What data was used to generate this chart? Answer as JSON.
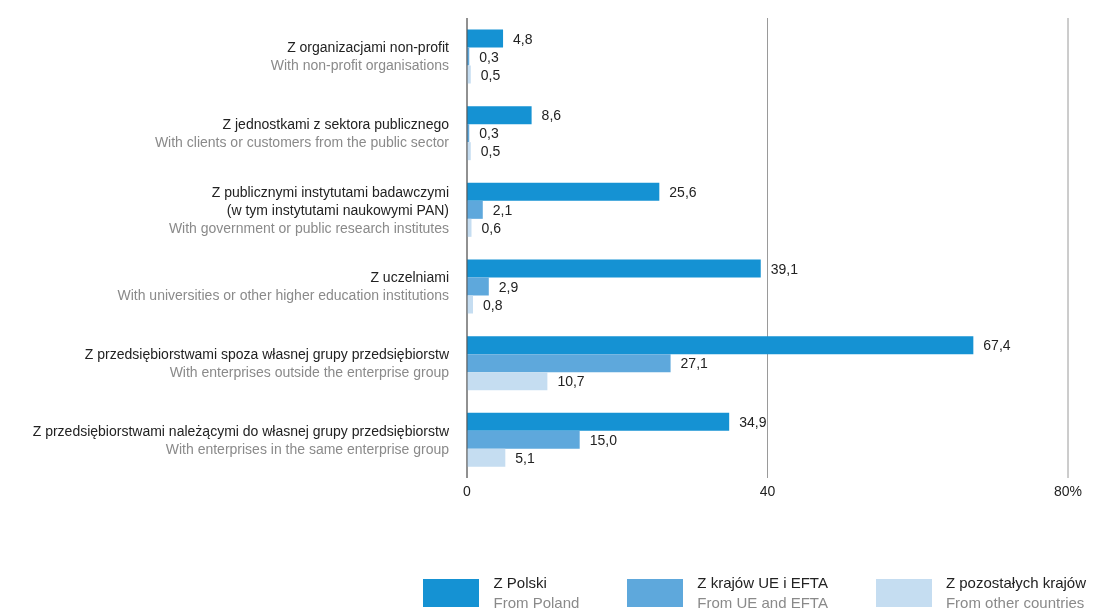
{
  "chart_data": {
    "type": "bar",
    "orientation": "horizontal",
    "categories": [
      "Z organizacjami non-profit\nWith non-profit organisations",
      "Z jednostkami z sektora publicznego\nWith clients or customers from the public sector",
      "Z publicznymi instytutami badawczymi\n(w tym instytutami naukowymi PAN)\nWith government or public research institutes",
      "Z uczelniami\nWith universities or other higher education institutions",
      "Z przedsiębiorstwami spoza własnej grupy przedsiębiorstw\nWith enterprises outside the enterprise group",
      "Z przedsiębiorstwami należącymi do własnej grupy przedsiębiorstw\nWith enterprises in the same enterprise group"
    ],
    "series": [
      {
        "name": "Z Polski\nFrom Poland",
        "color": "#1592d3",
        "values": [
          4.8,
          8.6,
          25.6,
          39.1,
          67.4,
          34.9
        ],
        "value_labels": [
          "4,8",
          "8,6",
          "25,6",
          "39,1",
          "67,4",
          "34,9"
        ]
      },
      {
        "name": "Z krajów UE i EFTA\nFrom UE and EFTA",
        "color": "#5ea8dc",
        "values": [
          0.3,
          0.3,
          2.1,
          2.9,
          27.1,
          15.0
        ],
        "value_labels": [
          "0,3",
          "0,3",
          "2,1",
          "2,9",
          "27,1",
          "15,0"
        ]
      },
      {
        "name": "Z pozostałych krajów\nFrom other countries",
        "color": "#c5ddf1",
        "values": [
          0.5,
          0.5,
          0.6,
          0.8,
          10.7,
          5.1
        ],
        "value_labels": [
          "0,5",
          "0,5",
          "0,6",
          "0,8",
          "10,7",
          "5,1"
        ]
      }
    ],
    "xlim": [
      0,
      80
    ],
    "xticks": [
      0,
      40,
      {
        "value": 80,
        "label": "80%"
      }
    ],
    "grid": "x",
    "legend": "bottom"
  }
}
